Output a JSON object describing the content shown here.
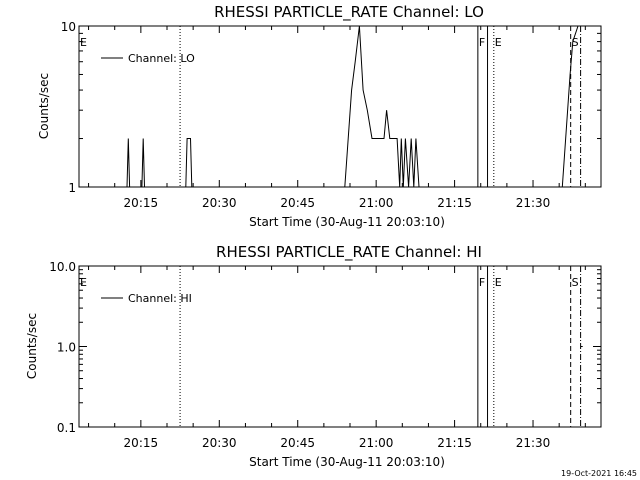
{
  "chart_data": [
    {
      "id": "lo",
      "type": "line",
      "title": "RHESSI PARTICLE_RATE Channel: LO",
      "xlabel": "Start Time (30-Aug-11 20:03:10)",
      "ylabel": "Counts/sec",
      "yscale": "log",
      "ylim": [
        1,
        10
      ],
      "ytick_values": [
        1,
        10
      ],
      "ytick_labels": [
        "1",
        "10"
      ],
      "xlim_minutes": [
        3.17,
        37.0
      ],
      "xtick_values": [
        15,
        30,
        45,
        60,
        75,
        90
      ],
      "xtick_labels": [
        "20:15",
        "20:30",
        "20:45",
        "21:00",
        "21:15",
        "21:30"
      ],
      "legend": {
        "label": "Channel: LO",
        "placement": "top-left"
      },
      "series": [
        {
          "name": "Channel: LO",
          "points": [
            [
              3.17,
              1
            ],
            [
              12.35,
              1
            ],
            [
              12.6,
              2
            ],
            [
              12.85,
              1
            ],
            [
              15.2,
              1
            ],
            [
              15.45,
              2
            ],
            [
              15.7,
              1
            ],
            [
              23.6,
              1
            ],
            [
              23.85,
              2
            ],
            [
              24.5,
              2
            ],
            [
              24.75,
              1
            ],
            [
              54.0,
              1
            ],
            [
              55.3,
              4
            ],
            [
              56.0,
              6
            ],
            [
              56.8,
              10
            ],
            [
              57.5,
              4
            ],
            [
              58.3,
              3
            ],
            [
              59.2,
              2
            ],
            [
              61.5,
              2
            ],
            [
              62.0,
              3
            ],
            [
              62.6,
              2
            ],
            [
              64.0,
              2
            ],
            [
              64.5,
              1
            ],
            [
              64.8,
              2
            ],
            [
              65.2,
              1
            ],
            [
              65.6,
              2
            ],
            [
              66.2,
              1
            ],
            [
              66.7,
              2
            ],
            [
              67.2,
              1
            ],
            [
              67.6,
              2
            ],
            [
              68.2,
              1
            ],
            [
              68.7,
              1
            ],
            [
              72.0,
              1
            ],
            [
              95.6,
              1
            ],
            [
              97.1,
              5
            ],
            [
              97.6,
              8
            ],
            [
              98.6,
              10
            ]
          ]
        }
      ],
      "flags": [
        {
          "label": "E",
          "minute": 3.17,
          "style": "none"
        },
        {
          "label": "F",
          "minute": 79.45,
          "style": "solid"
        },
        {
          "label": "",
          "minute": 81.3,
          "style": "solid"
        },
        {
          "label": "E",
          "minute": 82.5,
          "style": "dotted"
        },
        {
          "label": "S",
          "minute": 97.2,
          "style": "dashed"
        },
        {
          "label": "",
          "minute": 99.1,
          "style": "dash-dot"
        }
      ],
      "extra_vlines": [
        {
          "minute": 22.5,
          "style": "dotted"
        }
      ]
    },
    {
      "id": "hi",
      "type": "line",
      "title": "RHESSI PARTICLE_RATE Channel: HI",
      "xlabel": "Start Time (30-Aug-11 20:03:10)",
      "ylabel": "Counts/sec",
      "yscale": "log",
      "ylim": [
        0.1,
        10
      ],
      "ytick_values": [
        0.1,
        1,
        10
      ],
      "ytick_labels": [
        "0.1",
        "1.0",
        "10.0"
      ],
      "xlim_minutes": [
        3.17,
        37.0
      ],
      "xtick_values": [
        15,
        30,
        45,
        60,
        75,
        90
      ],
      "xtick_labels": [
        "20:15",
        "20:30",
        "20:45",
        "21:00",
        "21:15",
        "21:30"
      ],
      "legend": {
        "label": "Channel: HI",
        "placement": "top-left"
      },
      "series": [
        {
          "name": "Channel: HI",
          "points": [
            [
              99.1,
              1
            ],
            [
              99.5,
              1
            ]
          ]
        }
      ],
      "flags": [
        {
          "label": "E",
          "minute": 3.17,
          "style": "none"
        },
        {
          "label": "F",
          "minute": 79.45,
          "style": "solid"
        },
        {
          "label": "",
          "minute": 81.3,
          "style": "solid"
        },
        {
          "label": "E",
          "minute": 82.5,
          "style": "dotted"
        },
        {
          "label": "S",
          "minute": 97.2,
          "style": "dashed"
        },
        {
          "label": "",
          "minute": 99.1,
          "style": "dash-dot"
        }
      ],
      "extra_vlines": [
        {
          "minute": 22.5,
          "style": "dotted"
        }
      ]
    }
  ],
  "timestamp": "19-Oct-2021 16:45",
  "colors": {
    "background": "#ffffff",
    "foreground": "#000000"
  }
}
